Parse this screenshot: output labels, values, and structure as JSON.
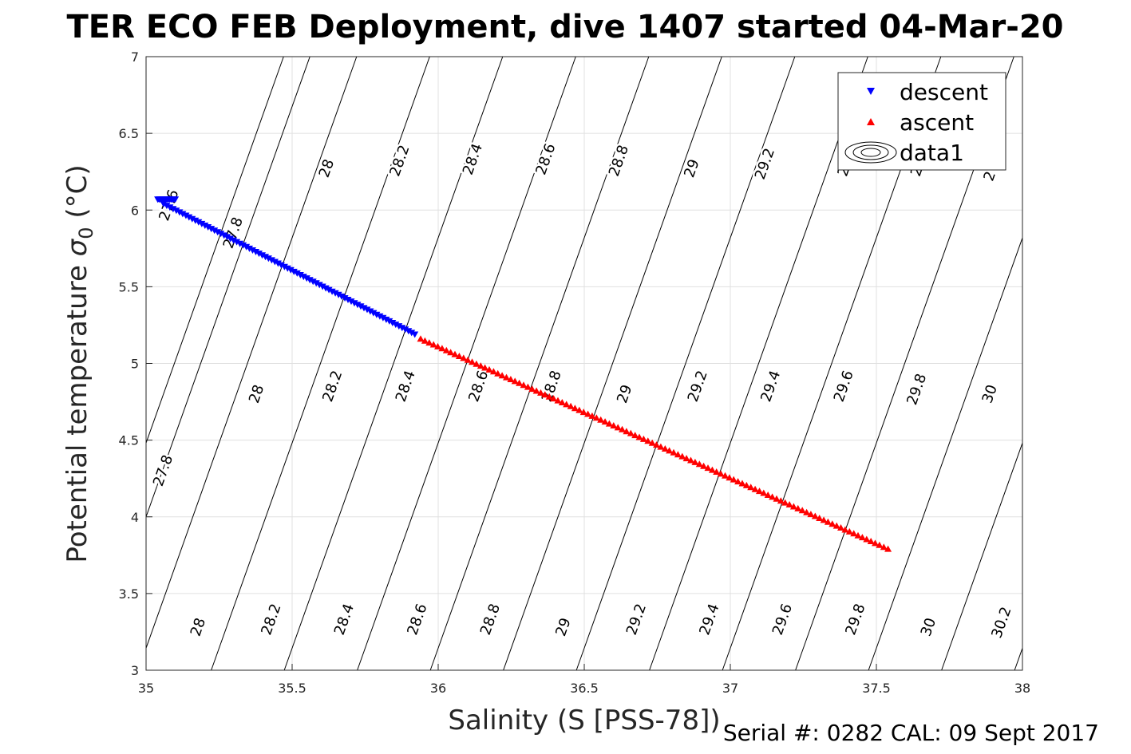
{
  "chart_data": {
    "type": "scatter",
    "title": "TER ECO FEB Deployment, dive 1407 started 04-Mar-20",
    "xlabel": "Salinity (S [PSS-78])",
    "ylabel": "Potential temperature σ₀ (°C)",
    "ylabel_main": "Potential temperature ",
    "ylabel_sigma": "σ",
    "ylabel_sub": "0",
    "ylabel_unit": " (°C)",
    "footer": "Serial #: 0282  CAL: 09 Sept 2017",
    "xlim": [
      35,
      38
    ],
    "ylim": [
      3,
      7
    ],
    "xticks": [
      "35",
      "35.5",
      "36",
      "36.5",
      "37",
      "37.5",
      "38"
    ],
    "yticks": [
      "3",
      "3.5",
      "4",
      "4.5",
      "5",
      "5.5",
      "6",
      "6.5",
      "7"
    ],
    "grid": true,
    "legend_position": "top-right",
    "legend": [
      {
        "label": "descent",
        "marker": "triangle-down",
        "color": "#0000ff"
      },
      {
        "label": "ascent",
        "marker": "triangle-up",
        "color": "#ff0000"
      },
      {
        "label": "data1",
        "marker": "contour-ellipses",
        "color": "#000000"
      }
    ],
    "series": [
      {
        "name": "descent",
        "color": "#0000ff",
        "marker": "triangle-down",
        "segments": [
          {
            "x_start": 35.04,
            "y_start": 6.07,
            "x_end": 35.1,
            "y_end": 6.07,
            "count": 14
          },
          {
            "x_start": 35.06,
            "y_start": 6.04,
            "x_end": 35.92,
            "y_end": 5.19,
            "count": 80
          }
        ]
      },
      {
        "name": "ascent",
        "color": "#ff0000",
        "marker": "triangle-up",
        "segments": [
          {
            "x_start": 35.94,
            "y_start": 5.16,
            "x_end": 37.54,
            "y_end": 3.79,
            "count": 110
          }
        ]
      }
    ],
    "contours": {
      "level_start": 27.4,
      "level_step": 0.2,
      "slope_dT_dS": 5.35,
      "x_at_y4": [
        34.91,
        35.0,
        35.16,
        35.41,
        35.66,
        35.91,
        36.16,
        36.41,
        36.66,
        36.91,
        37.16,
        37.41,
        37.66,
        37.91,
        38.16
      ],
      "labels_upper": [
        {
          "text": "27.6",
          "x": 35.08,
          "y": 6.03
        },
        {
          "text": "27.8",
          "x": 35.3,
          "y": 5.85
        },
        {
          "text": "28",
          "x": 35.62,
          "y": 6.27
        },
        {
          "text": "28.2",
          "x": 35.87,
          "y": 6.32
        },
        {
          "text": "28.4",
          "x": 36.12,
          "y": 6.33
        },
        {
          "text": "28.6",
          "x": 36.37,
          "y": 6.33
        },
        {
          "text": "28.8",
          "x": 36.62,
          "y": 6.32
        },
        {
          "text": "29",
          "x": 36.87,
          "y": 6.27
        },
        {
          "text": "29.2",
          "x": 37.12,
          "y": 6.3
        },
        {
          "text": "2",
          "x": 37.39,
          "y": 6.25
        },
        {
          "text": "2",
          "x": 37.64,
          "y": 6.25
        },
        {
          "text": "2",
          "x": 37.89,
          "y": 6.22
        }
      ],
      "labels_middle": [
        {
          "text": "27.8",
          "x": 35.06,
          "y": 4.3
        },
        {
          "text": "28",
          "x": 35.38,
          "y": 4.8
        },
        {
          "text": "28.2",
          "x": 35.64,
          "y": 4.85
        },
        {
          "text": "28.4",
          "x": 35.89,
          "y": 4.85
        },
        {
          "text": "28.6",
          "x": 36.14,
          "y": 4.85
        },
        {
          "text": "28.8",
          "x": 36.39,
          "y": 4.85
        },
        {
          "text": "29",
          "x": 36.64,
          "y": 4.8
        },
        {
          "text": "29.2",
          "x": 36.89,
          "y": 4.85
        },
        {
          "text": "29.4",
          "x": 37.14,
          "y": 4.85
        },
        {
          "text": "29.6",
          "x": 37.39,
          "y": 4.85
        },
        {
          "text": "29.8",
          "x": 37.64,
          "y": 4.83
        },
        {
          "text": "30",
          "x": 37.89,
          "y": 4.8
        }
      ],
      "labels_lower": [
        {
          "text": "28",
          "x": 35.18,
          "y": 3.28
        },
        {
          "text": "28.2",
          "x": 35.43,
          "y": 3.33
        },
        {
          "text": "28.4",
          "x": 35.68,
          "y": 3.33
        },
        {
          "text": "28.6",
          "x": 35.93,
          "y": 3.33
        },
        {
          "text": "28.8",
          "x": 36.18,
          "y": 3.33
        },
        {
          "text": "29",
          "x": 36.43,
          "y": 3.28
        },
        {
          "text": "29.2",
          "x": 36.68,
          "y": 3.33
        },
        {
          "text": "29.4",
          "x": 36.93,
          "y": 3.33
        },
        {
          "text": "29.6",
          "x": 37.18,
          "y": 3.33
        },
        {
          "text": "29.8",
          "x": 37.43,
          "y": 3.33
        },
        {
          "text": "30",
          "x": 37.68,
          "y": 3.28
        },
        {
          "text": "30.2",
          "x": 37.93,
          "y": 3.31
        }
      ]
    }
  }
}
